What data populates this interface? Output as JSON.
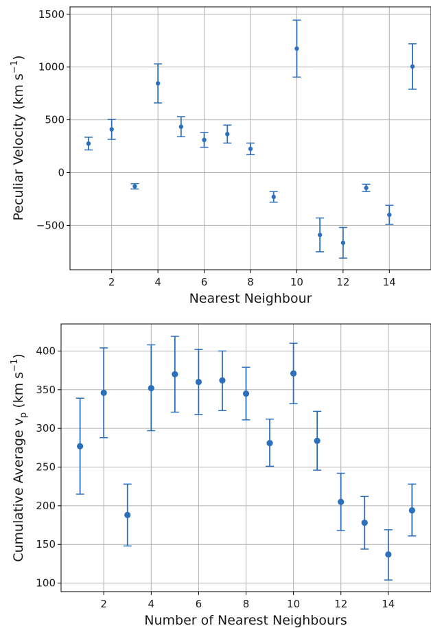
{
  "colors": {
    "series": "#2c6fbb",
    "grid": "#b0b0b0"
  },
  "chart_data": [
    {
      "type": "scatter",
      "errorbars": true,
      "xlabel": "Nearest Neighbour",
      "ylabel_main": "Peculiar Velocity (km s",
      "ylabel_sup": "−1",
      "ylabel_end": ")",
      "xlim": [
        0.2,
        15.8
      ],
      "ylim": [
        -920,
        1570
      ],
      "xticks": [
        2,
        4,
        6,
        8,
        10,
        12,
        14
      ],
      "yticks": [
        -500,
        0,
        500,
        1000,
        1500
      ],
      "ytick_labels": [
        "−500",
        "0",
        "500",
        "1000",
        "1500"
      ],
      "grid": true,
      "x": [
        1,
        2,
        3,
        4,
        5,
        6,
        7,
        8,
        9,
        10,
        11,
        12,
        13,
        14,
        15
      ],
      "y": [
        275,
        410,
        -130,
        845,
        435,
        310,
        365,
        225,
        -230,
        1175,
        -590,
        -665,
        -145,
        -400,
        1005
      ],
      "yerr_low": [
        60,
        95,
        25,
        185,
        95,
        70,
        85,
        55,
        50,
        270,
        160,
        145,
        35,
        90,
        215
      ],
      "yerr_high": [
        60,
        95,
        25,
        185,
        95,
        70,
        85,
        55,
        50,
        270,
        160,
        145,
        35,
        90,
        215
      ]
    },
    {
      "type": "scatter",
      "errorbars": true,
      "xlabel": "Number of Nearest Neighbours",
      "ylabel_main": "Cumulative Average v",
      "ylabel_sub": "p",
      "ylabel_mid": " (km s",
      "ylabel_sup": "−1",
      "ylabel_end": ")",
      "xlim": [
        0.2,
        15.8
      ],
      "ylim": [
        89,
        435
      ],
      "xticks": [
        2,
        4,
        6,
        8,
        10,
        12,
        14
      ],
      "yticks": [
        100,
        150,
        200,
        250,
        300,
        350,
        400
      ],
      "ytick_labels": [
        "100",
        "150",
        "200",
        "250",
        "300",
        "350",
        "400"
      ],
      "grid": true,
      "x": [
        1,
        2,
        3,
        4,
        5,
        6,
        7,
        8,
        9,
        10,
        11,
        12,
        13,
        14,
        15
      ],
      "y": [
        277,
        346,
        188,
        352,
        370,
        360,
        362,
        345,
        281,
        371,
        284,
        205,
        178,
        137,
        194
      ],
      "yerr_low": [
        62,
        58,
        40,
        55,
        49,
        42,
        39,
        34,
        30,
        39,
        38,
        37,
        34,
        33,
        33
      ],
      "yerr_high": [
        62,
        58,
        40,
        56,
        49,
        42,
        38,
        34,
        31,
        39,
        38,
        37,
        34,
        32,
        34
      ]
    }
  ]
}
